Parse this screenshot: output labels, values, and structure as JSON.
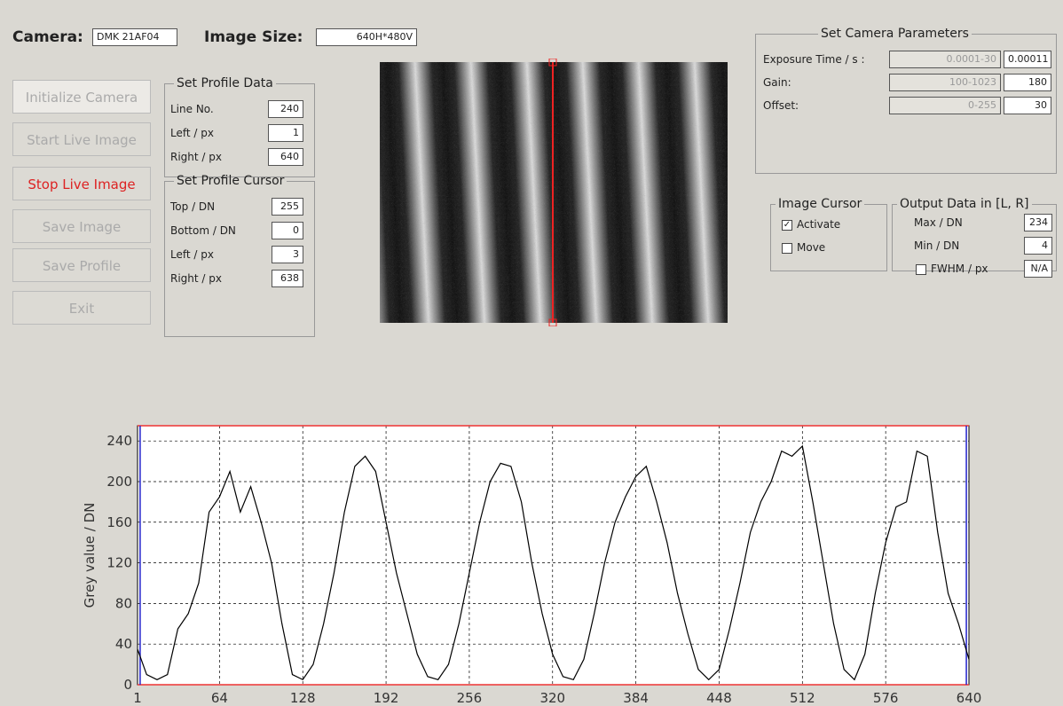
{
  "camera": {
    "label": "Camera:",
    "value": "DMK 21AF04"
  },
  "image_size": {
    "label": "Image Size:",
    "value": "640H*480V"
  },
  "buttons": [
    "Initialize Camera",
    "Start Live Image",
    "Stop Live Image",
    "Save Image",
    "Save Profile",
    "Exit"
  ],
  "profile_data": {
    "title": "Set Profile Data",
    "rows": [
      [
        "Line No.",
        "240"
      ],
      [
        "Left / px",
        "1"
      ],
      [
        "Right / px",
        "640"
      ]
    ]
  },
  "profile_cursor": {
    "title": "Set Profile Cursor",
    "rows": [
      [
        "Top / DN",
        255
      ],
      [
        "Bottom / DN",
        0
      ],
      [
        "Left / px",
        3
      ],
      [
        "Right / px",
        638
      ]
    ]
  },
  "camera_parameters": {
    "title": "Set Camera Parameters",
    "rows": [
      [
        "Exposure Time / s :",
        "0.0001-30",
        "0.00011"
      ],
      [
        "Gain:",
        "100-1023",
        "180"
      ],
      [
        "Offset:",
        "0-255",
        "30"
      ]
    ]
  },
  "image_cursor": {
    "title": "Image Cursor",
    "options": [
      {
        "label": "Activate",
        "checked": true
      },
      {
        "label": "Move",
        "checked": false
      }
    ]
  },
  "output_data": {
    "title": "Output Data in [L, R]",
    "rows": [
      [
        "Max / DN",
        "234"
      ],
      [
        "Min / DN",
        "4"
      ]
    ],
    "fwhm": {
      "label": "FWHM / px",
      "checked": false,
      "value": "N/A"
    }
  },
  "chart_data": {
    "type": "line",
    "ylabel": "Grey value / DN",
    "color": "#000000",
    "grid": true,
    "xlim": [
      1,
      640
    ],
    "xticks": [
      1,
      64,
      128,
      192,
      256,
      320,
      384,
      448,
      512,
      576,
      640
    ],
    "ylim": [
      0,
      255
    ],
    "yticks": [
      0,
      40,
      80,
      120,
      160,
      200,
      240
    ],
    "x": [
      1,
      8,
      16,
      24,
      32,
      40,
      48,
      56,
      64,
      72,
      80,
      88,
      96,
      104,
      112,
      120,
      128,
      136,
      144,
      152,
      160,
      168,
      176,
      184,
      192,
      200,
      208,
      216,
      224,
      232,
      240,
      248,
      256,
      264,
      272,
      280,
      288,
      296,
      304,
      312,
      320,
      328,
      336,
      344,
      352,
      360,
      368,
      376,
      384,
      392,
      400,
      408,
      416,
      424,
      432,
      440,
      448,
      456,
      464,
      472,
      480,
      488,
      496,
      504,
      512,
      520,
      528,
      536,
      544,
      552,
      560,
      568,
      576,
      584,
      592,
      600,
      608,
      616,
      624,
      632,
      640
    ],
    "values": [
      35,
      10,
      5,
      10,
      55,
      70,
      100,
      170,
      185,
      210,
      170,
      195,
      160,
      120,
      60,
      10,
      5,
      20,
      60,
      110,
      170,
      215,
      225,
      210,
      160,
      110,
      70,
      30,
      8,
      5,
      20,
      60,
      110,
      160,
      200,
      218,
      215,
      180,
      120,
      70,
      30,
      8,
      5,
      25,
      70,
      120,
      160,
      185,
      205,
      215,
      180,
      140,
      90,
      50,
      15,
      5,
      15,
      55,
      100,
      150,
      180,
      200,
      230,
      225,
      235,
      180,
      120,
      60,
      15,
      5,
      30,
      90,
      140,
      175,
      180,
      230,
      225,
      150,
      90,
      60,
      25
    ]
  }
}
